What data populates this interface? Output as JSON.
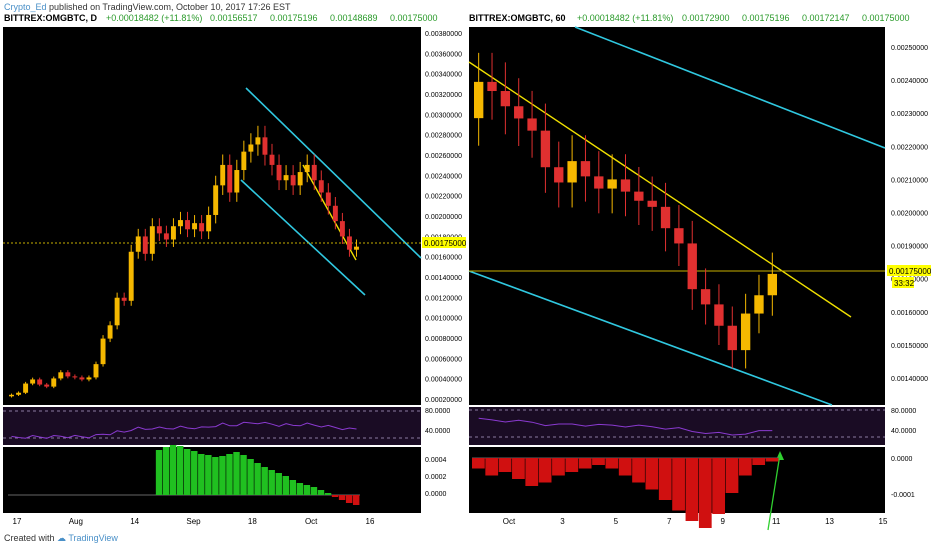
{
  "header": {
    "author": "Crypto_Ed",
    "text": "published on TradingView.com, October 10, 2017 17:26 EST"
  },
  "footer": {
    "created": "Created with",
    "brand": "TradingView"
  },
  "colors": {
    "background": "#000000",
    "up_candle": "#f5b800",
    "down_candle": "#e03030",
    "trendline": "#f0e000",
    "channel": "#30c8e0",
    "rsi_panel": "#1a0c24",
    "hist_green": "#20c020",
    "hist_red": "#d01010",
    "price_tag": "#ffff00"
  },
  "chart_data": [
    {
      "type": "candlestick",
      "ohlc_header": {
        "symbol": "BITTREX:OMGBTC, D",
        "change": "+0.00018482 (+11.81%)",
        "open": "0.00156517",
        "high": "0.00175196",
        "low": "0.00148689",
        "close": "0.00175000"
      },
      "price_axis": [
        "0.00380000",
        "0.00360000",
        "0.00340000",
        "0.00320000",
        "0.00300000",
        "0.00280000",
        "0.00260000",
        "0.00240000",
        "0.00220000",
        "0.00200000",
        "0.00180000",
        "0.00160000",
        "0.00140000",
        "0.00120000",
        "0.00100000",
        "0.00080000",
        "0.00060000",
        "0.00040000",
        "0.00020000"
      ],
      "time_axis": [
        "17",
        "Aug",
        "14",
        "Sep",
        "18",
        "Oct",
        "16"
      ],
      "last_price": "0.00175000",
      "ylim": [
        0.0002,
        0.0039
      ],
      "close_series": [
        0.0003,
        0.00032,
        0.00041,
        0.00045,
        0.0004,
        0.00038,
        0.00046,
        0.00052,
        0.00048,
        0.00047,
        0.00045,
        0.00047,
        0.0006,
        0.00085,
        0.00098,
        0.00125,
        0.00122,
        0.0017,
        0.00185,
        0.00168,
        0.00195,
        0.00188,
        0.00182,
        0.00195,
        0.00201,
        0.00192,
        0.00198,
        0.0019,
        0.00206,
        0.00235,
        0.00255,
        0.00228,
        0.0025,
        0.00268,
        0.00275,
        0.00282,
        0.00265,
        0.00255,
        0.0024,
        0.00245,
        0.00235,
        0.00248,
        0.00255,
        0.0024,
        0.00228,
        0.00215,
        0.002,
        0.00185,
        0.00172,
        0.00175
      ],
      "rsi_axis": [
        "80.0000",
        "40.0000"
      ],
      "macd_axis": [
        "0.0004",
        "0.0002",
        "0.0000"
      ],
      "macd_hist": [
        0,
        0,
        0,
        0,
        0,
        0,
        0,
        0,
        0,
        0,
        0,
        0,
        0,
        0,
        0,
        0,
        0,
        0,
        0,
        0,
        0,
        0.00045,
        0.00048,
        0.0005,
        0.00049,
        0.00046,
        0.00044,
        0.00041,
        0.0004,
        0.00038,
        0.00039,
        0.00041,
        0.00043,
        0.0004,
        0.00036,
        0.00032,
        0.00028,
        0.00025,
        0.00022,
        0.00019,
        0.00015,
        0.00012,
        0.0001,
        8e-05,
        5e-05,
        2e-05,
        -2e-05,
        -5e-05,
        -8e-05,
        -0.0001
      ]
    },
    {
      "type": "candlestick",
      "ohlc_header": {
        "symbol": "BITTREX:OMGBTC, 60",
        "change": "+0.00018482 (+11.81%)",
        "open": "0.00172900",
        "high": "0.00175196",
        "low": "0.00172147",
        "close": "0.00175000"
      },
      "price_axis": [
        "0.00250000",
        "0.00240000",
        "0.00230000",
        "0.00220000",
        "0.00210000",
        "0.00200000",
        "0.00190000",
        "0.00180000",
        "0.00160000",
        "0.00150000",
        "0.00140000"
      ],
      "time_axis": [
        "Oct",
        "3",
        "5",
        "7",
        "9",
        "11",
        "13",
        "15"
      ],
      "last_price": "0.00175000",
      "timer": "33:32",
      "ylim": [
        0.00132,
        0.00256
      ],
      "close_series": [
        0.00238,
        0.00235,
        0.0023,
        0.00226,
        0.00222,
        0.0021,
        0.00205,
        0.00212,
        0.00207,
        0.00203,
        0.00206,
        0.00202,
        0.00199,
        0.00197,
        0.0019,
        0.00185,
        0.0017,
        0.00165,
        0.00158,
        0.0015,
        0.00162,
        0.00168,
        0.00175
      ],
      "rsi_axis": [
        "80.0000",
        "40.0000"
      ],
      "macd_axis": [
        "0.0000",
        "-0.0001"
      ],
      "macd_hist": [
        -3e-05,
        -5e-05,
        -4e-05,
        -6e-05,
        -8e-05,
        -7e-05,
        -5e-05,
        -4e-05,
        -3e-05,
        -2e-05,
        -3e-05,
        -5e-05,
        -7e-05,
        -9e-05,
        -0.00012,
        -0.00015,
        -0.00018,
        -0.0002,
        -0.00016,
        -0.0001,
        -5e-05,
        -2e-05,
        -1e-05
      ]
    }
  ]
}
